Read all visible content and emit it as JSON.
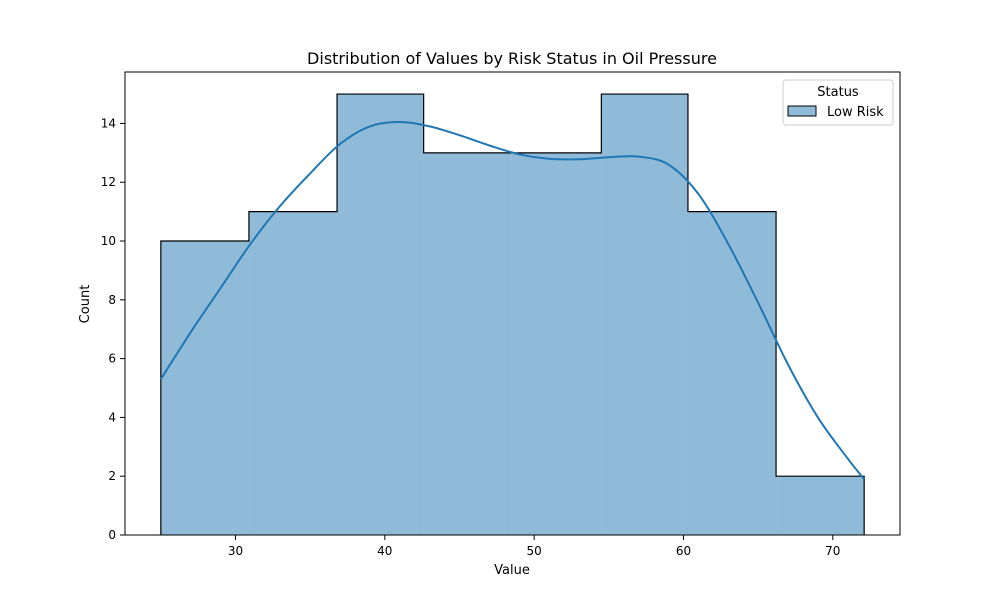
{
  "chart_data": {
    "type": "histogram",
    "title": "Distribution of Values by Risk Status in Oil Pressure",
    "xlabel": "Value",
    "ylabel": "Count",
    "xlim": [
      22.6,
      74.5
    ],
    "ylim": [
      0,
      15.75
    ],
    "xticks": [
      30,
      40,
      50,
      60,
      70
    ],
    "yticks": [
      0,
      2,
      4,
      6,
      8,
      10,
      12,
      14
    ],
    "grid": false,
    "legend": {
      "title": "Status",
      "placement": "top-right"
    },
    "series": [
      {
        "name": "Low Risk",
        "bin_edges": [
          25,
          30.9,
          36.8,
          42.6,
          48.5,
          54.5,
          60.3,
          66.2,
          72.1
        ],
        "counts": [
          10,
          11,
          15,
          13,
          13,
          15,
          11,
          2
        ],
        "kde": {
          "x": [
            25,
            27,
            29,
            31,
            33,
            35,
            37,
            39,
            41,
            43,
            45,
            47,
            49,
            51,
            53,
            55,
            57,
            59,
            61,
            63,
            65,
            67,
            69,
            71,
            72.1
          ],
          "y": [
            5.3,
            6.9,
            8.4,
            9.9,
            11.2,
            12.3,
            13.3,
            13.9,
            14.05,
            13.9,
            13.6,
            13.25,
            12.95,
            12.8,
            12.78,
            12.85,
            12.87,
            12.6,
            11.6,
            9.9,
            7.9,
            5.8,
            4.0,
            2.6,
            1.9
          ]
        }
      }
    ],
    "colors": {
      "fill": "#1f77b4",
      "fill_opacity": 0.5,
      "edge": "#000000",
      "kde": "#1f77b4"
    }
  }
}
